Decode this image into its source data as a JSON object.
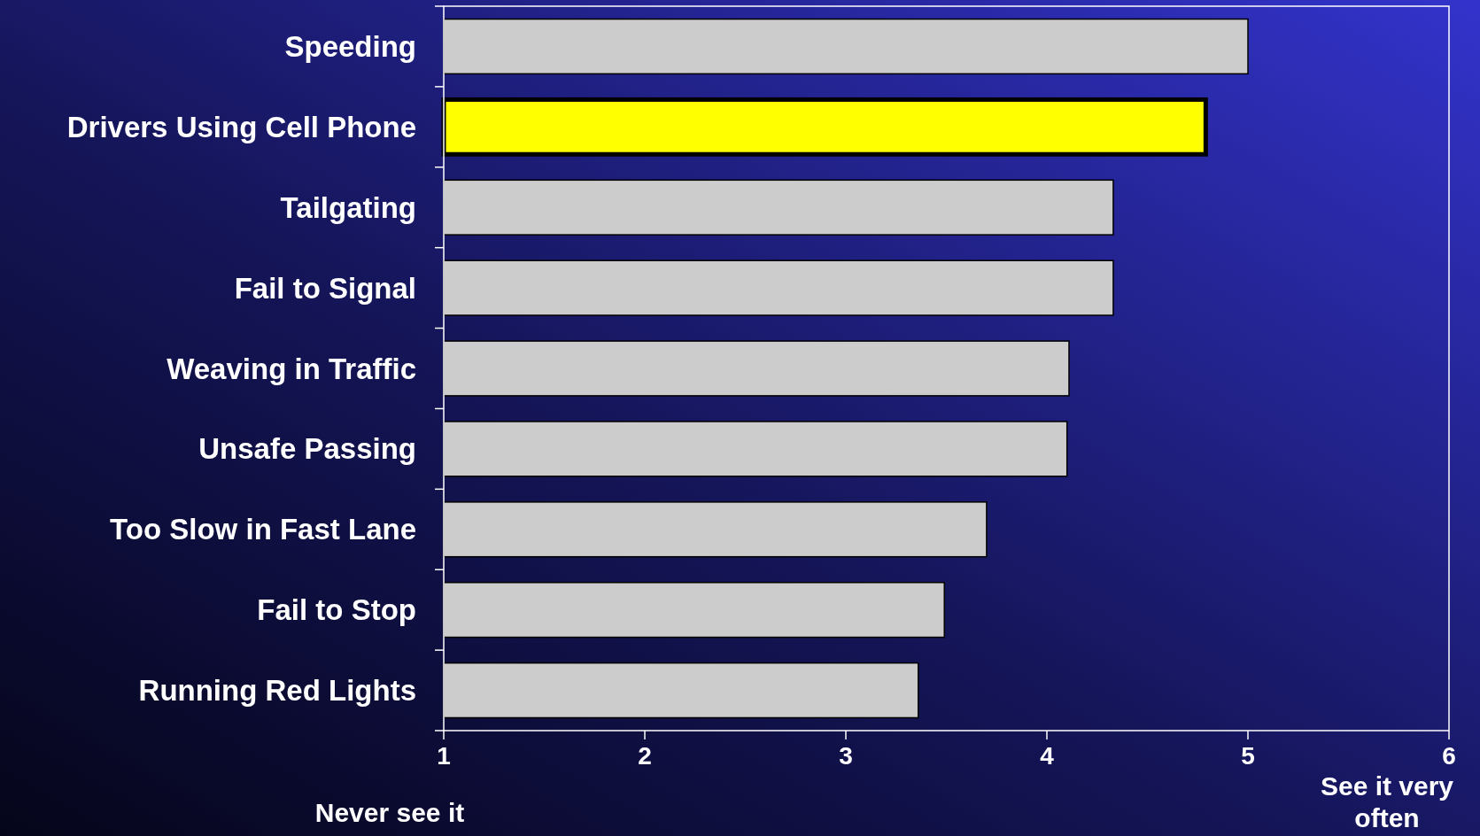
{
  "chart_data": {
    "type": "bar",
    "orientation": "horizontal",
    "categories": [
      "Speeding",
      "Drivers Using Cell Phone",
      "Tailgating",
      "Fail to Signal",
      "Weaving in Traffic",
      "Unsafe Passing",
      "Too Slow in Fast Lane",
      "Fail to Stop",
      "Running Red Lights"
    ],
    "values": [
      5.0,
      4.79,
      4.33,
      4.33,
      4.11,
      4.1,
      3.7,
      3.49,
      3.36
    ],
    "colors": [
      "#cccccc",
      "#ffff00",
      "#cccccc",
      "#cccccc",
      "#cccccc",
      "#cccccc",
      "#cccccc",
      "#cccccc",
      "#cccccc"
    ],
    "xlim": [
      1,
      6
    ],
    "xticks": [
      1,
      2,
      3,
      4,
      5,
      6
    ],
    "annotations": [
      "Never see it",
      "See it very often"
    ]
  }
}
